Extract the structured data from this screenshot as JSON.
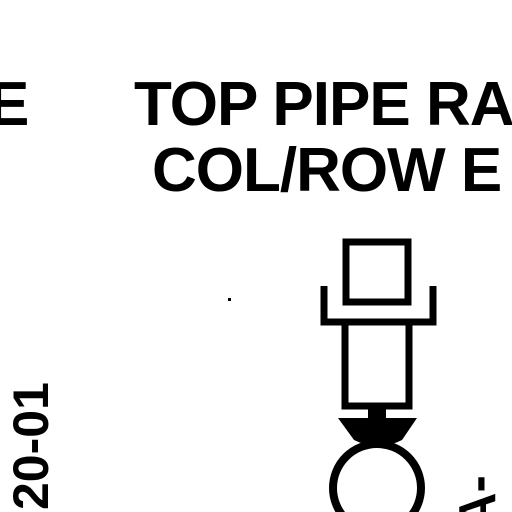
{
  "drawing": {
    "title_line1": "TOP PIPE RA",
    "title_line2": "COL/ROW E",
    "left_edge_letter": "E",
    "left_vertical_tag": "20-01",
    "right_vertical_tag": "A-"
  },
  "colors": {
    "ink": "#000000",
    "paper": "#ffffff"
  }
}
